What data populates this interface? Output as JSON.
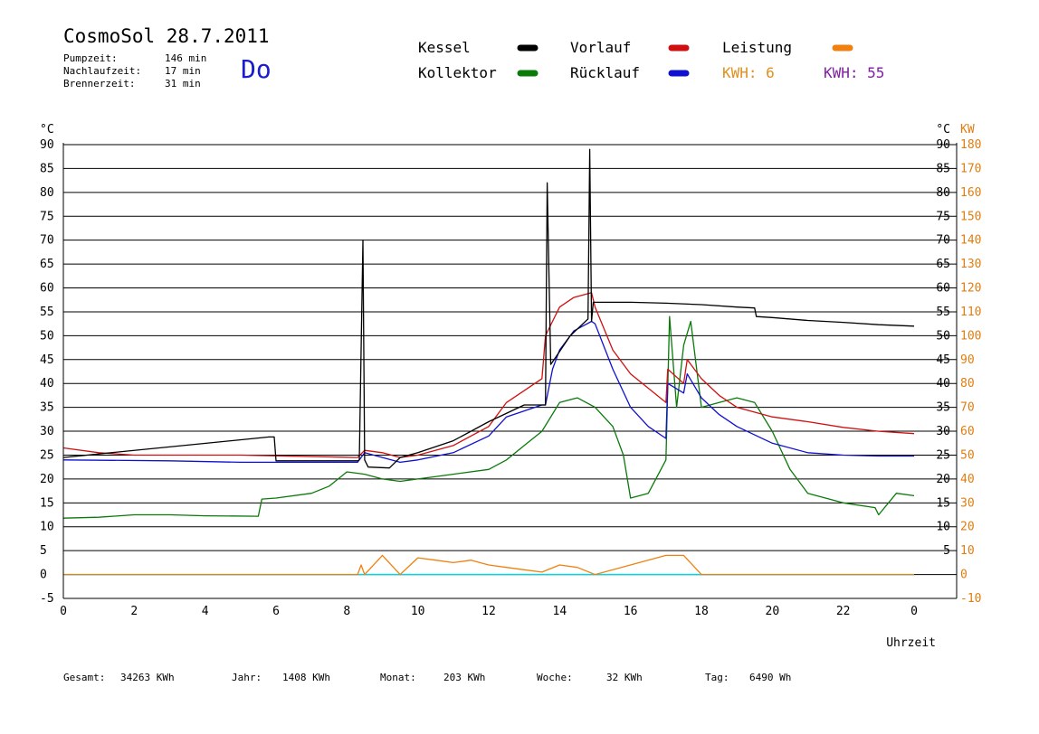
{
  "header": {
    "title": "CosmoSol 28.7.2011",
    "day": "Do",
    "pump_label": "Pumpzeit:",
    "pump_value": "146 min",
    "nachlauf_label": "Nachlaufzeit:",
    "nachlauf_value": "17 min",
    "brenner_label": "Brennerzeit:",
    "brenner_value": "31 min"
  },
  "legend": {
    "kessel": "Kessel",
    "kollektor": "Kollektor",
    "vorlauf": "Vorlauf",
    "ruecklauf": "Rücklauf",
    "leistung": "Leistung",
    "kwh1": "KWH: 6",
    "kwh2": "KWH: 55"
  },
  "footer": {
    "gesamt_label": "Gesamt:",
    "gesamt_value": "34263 KWh",
    "jahr_label": "Jahr:",
    "jahr_value": "1408 KWh",
    "monat_label": "Monat:",
    "monat_value": "203 KWh",
    "woche_label": "Woche:",
    "woche_value": "32 KWh",
    "tag_label": "Tag:",
    "tag_value": "6490 Wh"
  },
  "chart_data": {
    "type": "line",
    "xlabel": "Uhrzeit",
    "ylabel_left": "°C",
    "ylabel_right_temp": "°C",
    "ylabel_right_power": "KW",
    "xlim": [
      0,
      24
    ],
    "ylim": [
      -5,
      90
    ],
    "ylim_power": [
      -10,
      180
    ],
    "x_ticks": [
      "0",
      "2",
      "4",
      "6",
      "8",
      "10",
      "12",
      "14",
      "16",
      "18",
      "20",
      "22",
      "0"
    ],
    "x_tick_values": [
      0,
      2,
      4,
      6,
      8,
      10,
      12,
      14,
      16,
      18,
      20,
      22,
      24
    ],
    "y_ticks_left": [
      "90",
      "85",
      "80",
      "75",
      "70",
      "65",
      "60",
      "55",
      "50",
      "45",
      "40",
      "35",
      "30",
      "25",
      "20",
      "15",
      "10",
      "5",
      "0",
      "-5"
    ],
    "y_ticks_right": [
      "90",
      "85",
      "80",
      "75",
      "70",
      "65",
      "60",
      "55",
      "50",
      "45",
      "40",
      "35",
      "30",
      "25",
      "20",
      "15",
      "10",
      "5"
    ],
    "y_ticks_power": [
      "180",
      "170",
      "160",
      "150",
      "140",
      "130",
      "120",
      "110",
      "100",
      "90",
      "80",
      "70",
      "60",
      "50",
      "40",
      "30",
      "20",
      "10",
      "0",
      "-10"
    ],
    "colors": {
      "kessel": "#000000",
      "kollektor": "#0a7a0a",
      "vorlauf": "#d01010",
      "ruecklauf": "#1010d0",
      "leistung": "#f08010",
      "kwh1": "#e09020",
      "kwh2": "#8020a0",
      "pump": "#00d8e8",
      "purple": "#7a1a9a"
    },
    "series": [
      {
        "name": "Kessel",
        "color": "#000000",
        "x": [
          0,
          5.8,
          5.95,
          6.0,
          8.3,
          8.35,
          8.45,
          8.5,
          8.6,
          9.2,
          9.5,
          10.0,
          11.0,
          12.0,
          13.0,
          13.6,
          13.65,
          13.75,
          13.8,
          14.3,
          14.8,
          14.85,
          14.9,
          14.95,
          15.3,
          16.0,
          17.0,
          18.0,
          19.0,
          19.5,
          19.55,
          20.0,
          21.0,
          22.0,
          23.0,
          24.0
        ],
        "values": [
          24.5,
          28.8,
          28.8,
          23.8,
          23.8,
          24.0,
          70.0,
          24.0,
          22.5,
          22.3,
          24.5,
          25.5,
          28.0,
          32.0,
          35.5,
          35.5,
          82.0,
          44.0,
          44.5,
          50.0,
          53.5,
          89.0,
          53.0,
          57.0,
          57.0,
          57.0,
          56.8,
          56.5,
          56.0,
          55.8,
          54.0,
          53.8,
          53.2,
          52.8,
          52.3,
          52.0
        ]
      },
      {
        "name": "Vorlauf",
        "color": "#d01010",
        "x": [
          0,
          1.0,
          2.0,
          5.0,
          8.3,
          8.5,
          9.0,
          9.5,
          10.0,
          11.0,
          12.0,
          12.5,
          13.5,
          13.6,
          13.8,
          14.0,
          14.4,
          14.9,
          15.0,
          15.5,
          16.0,
          17.0,
          17.05,
          17.5,
          17.6,
          18.0,
          18.5,
          19.0,
          20.0,
          21.0,
          22.0,
          23.0,
          24.0
        ],
        "values": [
          26.5,
          25.5,
          25.0,
          25.0,
          24.5,
          26.0,
          25.5,
          24.5,
          25.0,
          27.0,
          31.0,
          36.0,
          41.0,
          50.0,
          53.0,
          56.0,
          58.0,
          59.0,
          56.0,
          47.0,
          42.0,
          36.0,
          43.0,
          40.0,
          45.0,
          41.0,
          37.5,
          35.0,
          33.0,
          32.0,
          30.8,
          30.0,
          29.5
        ]
      },
      {
        "name": "Rücklauf",
        "color": "#1010d0",
        "x": [
          0,
          3.0,
          5.0,
          6.0,
          8.3,
          8.5,
          9.0,
          9.5,
          10.0,
          11.0,
          12.0,
          12.5,
          13.5,
          13.6,
          13.8,
          14.0,
          14.4,
          14.9,
          15.0,
          15.5,
          16.0,
          16.5,
          17.0,
          17.05,
          17.5,
          17.6,
          18.0,
          18.5,
          19.0,
          20.0,
          21.0,
          22.0,
          23.0,
          24.0
        ],
        "values": [
          24.0,
          23.8,
          23.5,
          23.5,
          23.5,
          25.5,
          24.5,
          23.5,
          24.0,
          25.5,
          29.0,
          33.0,
          35.5,
          35.5,
          43.0,
          47.0,
          51.0,
          53.0,
          52.5,
          43.0,
          35.0,
          31.0,
          28.5,
          40.0,
          38.0,
          42.0,
          37.0,
          33.5,
          31.0,
          27.5,
          25.5,
          25.0,
          24.8,
          24.8
        ]
      },
      {
        "name": "Kollektor",
        "color": "#0a7a0a",
        "x": [
          0,
          1.0,
          2.0,
          3.0,
          4.0,
          5.5,
          5.6,
          6.0,
          7.0,
          7.5,
          8.0,
          8.5,
          9.0,
          9.5,
          10.0,
          11.0,
          12.0,
          12.5,
          13.0,
          13.5,
          14.0,
          14.5,
          15.0,
          15.5,
          15.8,
          16.0,
          16.5,
          17.0,
          17.1,
          17.3,
          17.5,
          17.7,
          18.0,
          18.5,
          19.0,
          19.5,
          20.0,
          20.5,
          21.0,
          22.0,
          22.9,
          23.0,
          23.5,
          24.0
        ],
        "values": [
          11.8,
          12.0,
          12.5,
          12.5,
          12.3,
          12.2,
          15.8,
          16.0,
          17.0,
          18.5,
          21.5,
          21.0,
          20.0,
          19.5,
          20.0,
          21.0,
          22.0,
          24.0,
          27.0,
          30.0,
          36.0,
          37.0,
          35.0,
          31.0,
          25.0,
          16.0,
          17.0,
          24.0,
          54.0,
          35.0,
          48.0,
          53.0,
          35.0,
          36.0,
          37.0,
          36.0,
          30.0,
          22.0,
          17.0,
          15.0,
          14.0,
          12.5,
          17.0,
          16.5
        ]
      },
      {
        "name": "Leistung",
        "color": "#f08010",
        "x": [
          0,
          8.3,
          8.4,
          8.5,
          9.0,
          9.5,
          10.0,
          10.5,
          11.0,
          11.5,
          12.0,
          12.5,
          13.0,
          13.5,
          14.0,
          14.5,
          15.0,
          17.0,
          17.5,
          18.0,
          24.0
        ],
        "values": [
          0,
          0,
          2.0,
          0,
          4.0,
          0,
          3.5,
          3.0,
          2.5,
          3.0,
          2.0,
          1.5,
          1.0,
          0.5,
          2.0,
          1.5,
          0,
          4.0,
          4.0,
          0,
          0
        ]
      }
    ]
  }
}
